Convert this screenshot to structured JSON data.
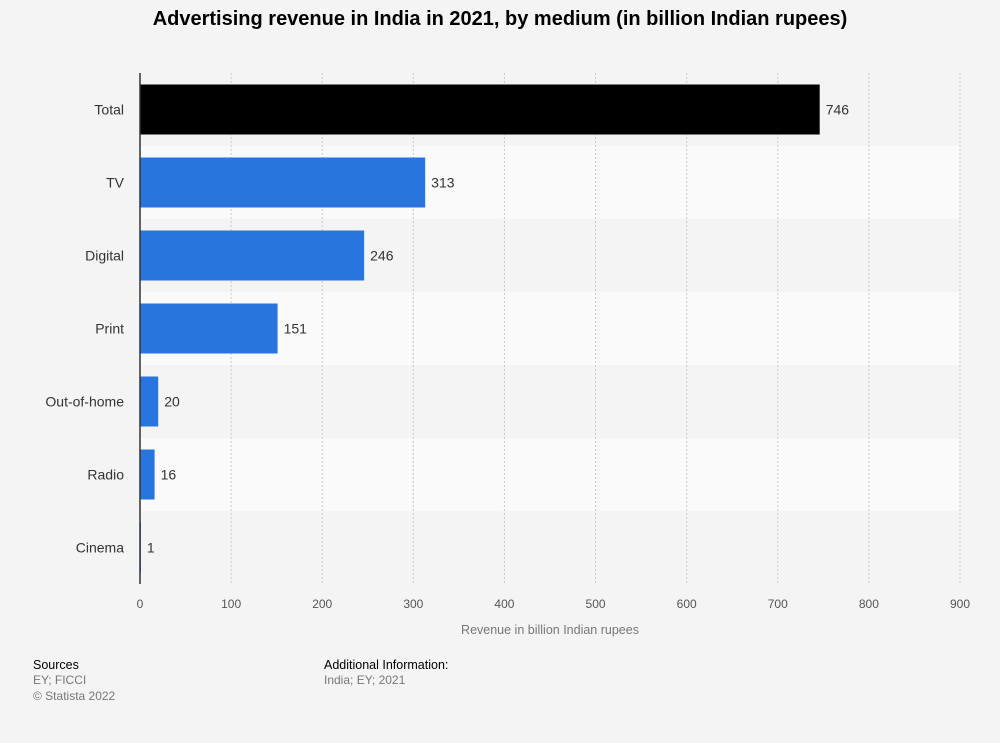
{
  "chart_data": {
    "type": "bar",
    "orientation": "horizontal",
    "title": "Advertising revenue in India in 2021, by medium (in billion Indian rupees)",
    "xlabel": "Revenue in billion Indian rupees",
    "ylabel": "",
    "categories": [
      "Total",
      "TV",
      "Digital",
      "Print",
      "Out-of-home",
      "Radio",
      "Cinema"
    ],
    "values": [
      746,
      313,
      246,
      151,
      20,
      16,
      1
    ],
    "value_labels": [
      "746",
      "313",
      "246",
      "151",
      "20",
      "16",
      "1"
    ],
    "xlim": [
      0,
      900
    ],
    "ticks": [
      0,
      100,
      200,
      300,
      400,
      500,
      600,
      700,
      800,
      900
    ],
    "tick_labels": [
      "0",
      "100",
      "200",
      "300",
      "400",
      "500",
      "600",
      "700",
      "800",
      "900"
    ],
    "grid": true,
    "colors": {
      "total": "#000000",
      "bar": "#2876dd",
      "band": "#fafafa",
      "grid": "#c8c8c8",
      "axis": "#333333"
    }
  },
  "footer": {
    "sources_heading": "Sources",
    "sources_lines": [
      "EY; FICCI",
      "© Statista 2022"
    ],
    "additional_heading": "Additional Information:",
    "additional_lines": [
      "India; EY; 2021"
    ]
  }
}
